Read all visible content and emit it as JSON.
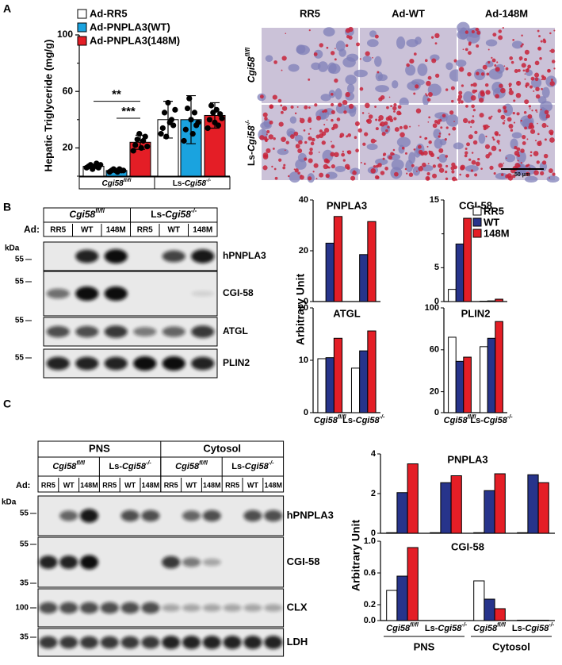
{
  "panel_labels": [
    "A",
    "B",
    "C"
  ],
  "chart_data": [
    {
      "type": "bar",
      "ylabel": "Hepatic Triglyceride (mg/g)",
      "ylim": [
        0,
        100
      ],
      "yticks": [
        20,
        60,
        100
      ],
      "minor_yticks": [
        0,
        40,
        80
      ],
      "categories": [
        {
          "gene": "Cgi58",
          "sup": "fl/fl"
        },
        {
          "prefix": "Ls-",
          "gene": "Cgi58",
          "sup": "-/-"
        }
      ],
      "series": [
        {
          "name": "Ad-RR5",
          "color": "#ffffff",
          "values": [
            7,
            40
          ],
          "errors": [
            1,
            13
          ],
          "points": [
            [
              6,
              7,
              8,
              5,
              7,
              9,
              6,
              8
            ],
            [
              30,
              34,
              45,
              28,
              52,
              38,
              40,
              36,
              47
            ]
          ]
        },
        {
          "name": "Ad-PNPLA3(WT)",
          "color": "#1aa3df",
          "values": [
            4,
            40
          ],
          "errors": [
            1,
            17
          ],
          "points": [
            [
              3,
              4,
              5,
              4,
              3,
              5,
              4,
              4
            ],
            [
              25,
              33,
              48,
              55,
              40,
              30,
              45,
              36,
              38
            ]
          ]
        },
        {
          "name": "Ad-PNPLA3(148M)",
          "color": "#e41e26",
          "values": [
            24,
            43
          ],
          "errors": [
            5,
            9
          ],
          "points": [
            [
              18,
              22,
              26,
              30,
              20,
              25,
              28,
              21
            ],
            [
              34,
              40,
              50,
              45,
              38,
              47,
              36,
              44,
              41
            ]
          ]
        }
      ],
      "annotations": [
        "**",
        "***"
      ]
    },
    {
      "type": "bar",
      "title": "PNPLA3",
      "ylabel": "Arbitrary Unit",
      "ylim": [
        0,
        40
      ],
      "yticks": [
        0,
        20,
        40
      ],
      "series": [
        {
          "color": "#ffffff",
          "values": [
            0,
            0
          ]
        },
        {
          "color": "#27348b",
          "values": [
            23,
            18.5
          ]
        },
        {
          "color": "#e41e26",
          "values": [
            33.5,
            31.5
          ]
        }
      ]
    },
    {
      "type": "bar",
      "title": "CGI-58",
      "ylim": [
        0,
        15
      ],
      "yticks": [
        0,
        5,
        15
      ],
      "minor_yticks": [
        10
      ],
      "series": [
        {
          "name": "RR5",
          "color": "#ffffff",
          "values": [
            1.8,
            0.05
          ]
        },
        {
          "name": "WT",
          "color": "#27348b",
          "values": [
            8.5,
            0.1
          ]
        },
        {
          "name": "148M",
          "color": "#e41e26",
          "values": [
            12.3,
            0.35
          ]
        }
      ]
    },
    {
      "type": "bar",
      "title": "ATGL",
      "ylim": [
        0,
        20
      ],
      "yticks": [
        0,
        10,
        20
      ],
      "categories": [
        {
          "gene": "Cgi58",
          "sup": "fl/fl"
        },
        {
          "prefix": "Ls-",
          "gene": "Cgi58",
          "sup": "-/-"
        }
      ],
      "series": [
        {
          "color": "#ffffff",
          "values": [
            10.3,
            8.5
          ]
        },
        {
          "color": "#27348b",
          "values": [
            10.5,
            11.8
          ]
        },
        {
          "color": "#e41e26",
          "values": [
            14.2,
            15.6
          ]
        }
      ]
    },
    {
      "type": "bar",
      "title": "PLIN2",
      "ylim": [
        0,
        100
      ],
      "yticks": [
        0,
        20,
        60,
        100
      ],
      "categories": [
        {
          "gene": "Cgi58",
          "sup": "fl/fl"
        },
        {
          "prefix": "Ls-",
          "gene": "Cgi58",
          "sup": "-/-"
        }
      ],
      "series": [
        {
          "color": "#ffffff",
          "values": [
            72,
            63
          ]
        },
        {
          "color": "#27348b",
          "values": [
            49,
            71
          ]
        },
        {
          "color": "#e41e26",
          "values": [
            53,
            87
          ]
        }
      ]
    },
    {
      "type": "bar",
      "title": "PNPLA3",
      "ylabel": "Arbitrary Unit",
      "ylim": [
        0,
        4
      ],
      "yticks": [
        0,
        2,
        4
      ],
      "series": [
        {
          "color": "#ffffff",
          "values": [
            0.03,
            0.03,
            0.03,
            0.03
          ]
        },
        {
          "color": "#27348b",
          "values": [
            2.05,
            2.55,
            2.15,
            2.95
          ]
        },
        {
          "color": "#e41e26",
          "values": [
            3.5,
            2.9,
            3.0,
            2.55
          ]
        }
      ]
    },
    {
      "type": "bar",
      "title": "CGI-58",
      "ylim": [
        0,
        1
      ],
      "yticks": [
        {
          "value": 0,
          "label": "0.0"
        },
        0.2,
        0.6,
        {
          "value": 1,
          "label": "1.0"
        }
      ],
      "categories": [
        {
          "gene": "Cgi58",
          "sup": "fl/fl"
        },
        {
          "prefix": "Ls-",
          "gene": "Cgi58",
          "sup": "-/-"
        },
        {
          "gene": "Cgi58",
          "sup": "fl/fl"
        },
        {
          "prefix": "Ls-",
          "gene": "Cgi58",
          "sup": "-/-"
        }
      ],
      "supercategories": [
        "PNS",
        "Cytosol"
      ],
      "series": [
        {
          "color": "#ffffff",
          "values": [
            0.38,
            0,
            0.5,
            0.005
          ]
        },
        {
          "color": "#27348b",
          "values": [
            0.56,
            0,
            0.27,
            0.005
          ]
        },
        {
          "color": "#e41e26",
          "values": [
            0.92,
            0,
            0.15,
            0.005
          ]
        }
      ]
    }
  ],
  "micrographs": {
    "columns": [
      "RR5",
      "Ad-WT",
      "Ad-148M"
    ],
    "rows": [
      {
        "gene": "Cgi58",
        "sup": "fl/fl"
      },
      {
        "prefix": "Ls-",
        "gene": "Cgi58",
        "sup": "-/-"
      }
    ],
    "scale_bar": "50 µm"
  },
  "blot_b": {
    "ad": "Ad:",
    "kda": "kDa",
    "groups": [
      {
        "gene": "Cgi58",
        "sup": "fl/fl"
      },
      {
        "prefix": "Ls-",
        "gene": "Cgi58",
        "sup": "-/-"
      }
    ],
    "lanes": [
      "RR5",
      "WT",
      "148M",
      "RR5",
      "WT",
      "148M"
    ],
    "markers": [
      "55",
      "55",
      "55",
      "55"
    ],
    "rows": [
      "hPNPLA3",
      "CGI-58",
      "ATGL",
      "PLIN2"
    ]
  },
  "blot_c": {
    "ad": "Ad:",
    "kda": "kDa",
    "sections": [
      "PNS",
      "Cytosol"
    ],
    "groups": [
      {
        "gene": "Cgi58",
        "sup": "fl/fl"
      },
      {
        "prefix": "Ls-",
        "gene": "Cgi58",
        "sup": "-/-"
      },
      {
        "gene": "Cgi58",
        "sup": "fl/fl"
      },
      {
        "prefix": "Ls-",
        "gene": "Cgi58",
        "sup": "-/-"
      }
    ],
    "lanes": [
      "RR5",
      "WT",
      "148M",
      "RR5",
      "WT",
      "148M",
      "RR5",
      "WT",
      "148M",
      "RR5",
      "WT",
      "148M"
    ],
    "markers": [
      "55",
      "55",
      "35",
      "100",
      "35"
    ],
    "rows": [
      "hPNPLA3",
      "CGI-58",
      "CLX",
      "LDH"
    ]
  }
}
